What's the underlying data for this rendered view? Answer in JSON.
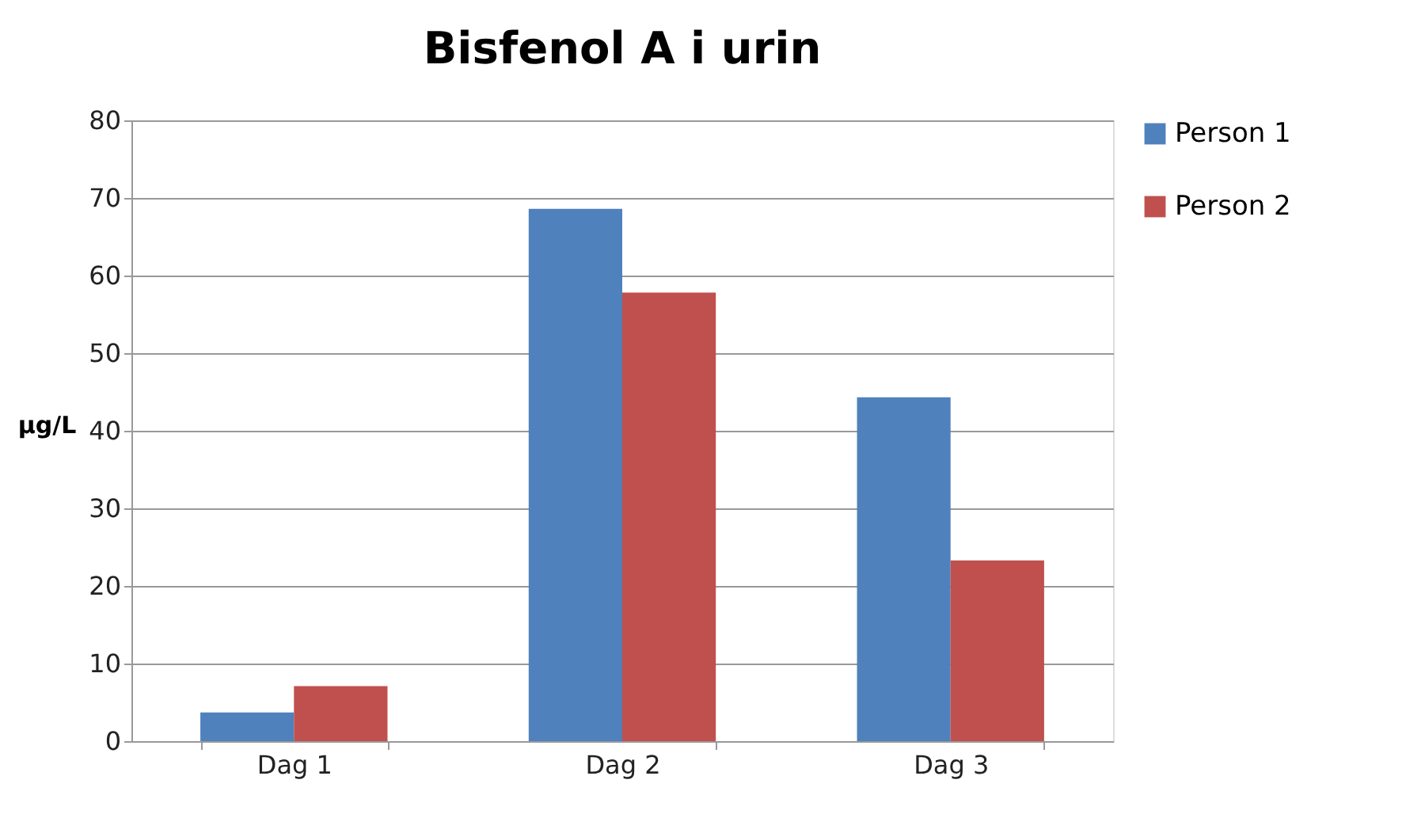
{
  "chart_data": {
    "type": "bar",
    "title": "Bisfenol A i urin",
    "ylabel": "µg/L",
    "categories": [
      "Dag 1",
      "Dag 2",
      "Dag 3"
    ],
    "series": [
      {
        "name": "Person 1",
        "color": "#4f81bd",
        "values": [
          3.7,
          68.6,
          44.3
        ]
      },
      {
        "name": "Person 2",
        "color": "#c0504d",
        "values": [
          7.1,
          57.8,
          23.3
        ]
      }
    ],
    "ylim": [
      0,
      80
    ],
    "yticks": [
      0,
      10,
      20,
      30,
      40,
      50,
      60,
      70,
      80
    ],
    "grid": "y",
    "legend": "right"
  }
}
